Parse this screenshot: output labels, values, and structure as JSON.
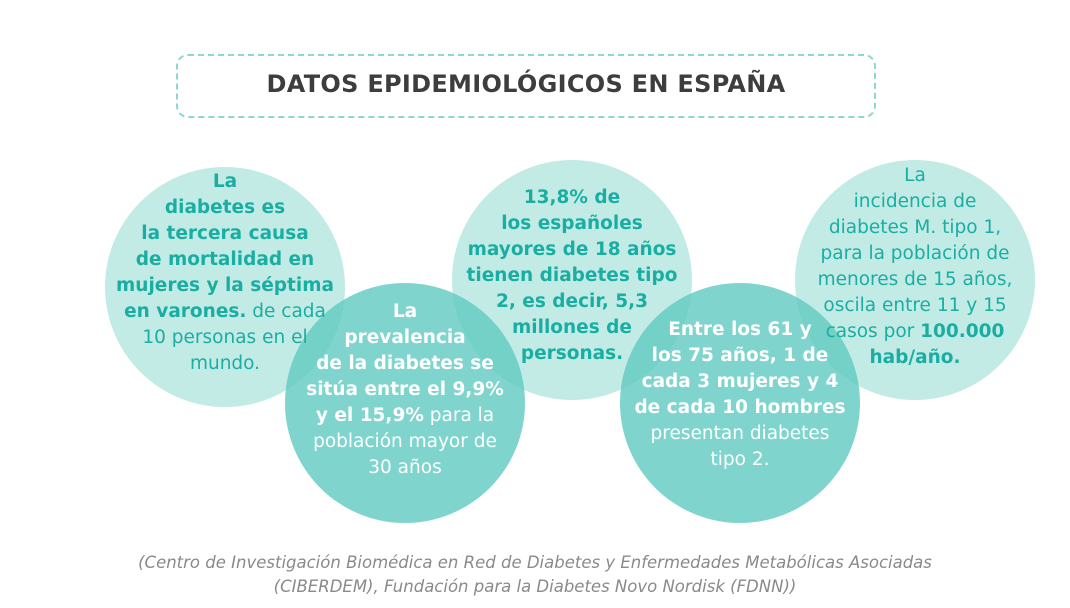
{
  "title": "DATOS EPIDEMIOLÓGICOS EN ESPAÑA",
  "circles": [
    {
      "lines": [
        [
          {
            "text": "La",
            "bold": true
          }
        ],
        [
          {
            "text": "diabetes es",
            "bold": true
          }
        ],
        [
          {
            "text": "la tercera causa",
            "bold": true
          }
        ],
        [
          {
            "text": "de mortalidad en",
            "bold": true
          }
        ],
        [
          {
            "text": "mujeres y la séptima",
            "bold": true
          }
        ],
        [
          {
            "text": "en varones.",
            "bold": true
          },
          {
            "text": " de cada",
            "bold": false
          }
        ],
        [
          {
            "text": "10 personas en el",
            "bold": false
          }
        ],
        [
          {
            "text": "mundo.",
            "bold": false
          }
        ]
      ]
    },
    {
      "lines": [
        [
          {
            "text": "La",
            "bold": true
          }
        ],
        [
          {
            "text": "prevalencia",
            "bold": true
          }
        ],
        [
          {
            "text": "de la diabetes se",
            "bold": true
          }
        ],
        [
          {
            "text": "sitúa entre el 9,9%",
            "bold": true
          }
        ],
        [
          {
            "text": "y el 15,9%",
            "bold": true
          },
          {
            "text": " para la",
            "bold": false
          }
        ],
        [
          {
            "text": "población mayor de",
            "bold": false
          }
        ],
        [
          {
            "text": "30 años",
            "bold": false
          }
        ]
      ]
    },
    {
      "lines": [
        [
          {
            "text": "13,8% de",
            "bold": true
          }
        ],
        [
          {
            "text": "los españoles",
            "bold": true
          }
        ],
        [
          {
            "text": "mayores de 18 años",
            "bold": true
          }
        ],
        [
          {
            "text": "tienen diabetes tipo",
            "bold": true
          }
        ],
        [
          {
            "text": "2, es decir, 5,3",
            "bold": true
          }
        ],
        [
          {
            "text": "millones de",
            "bold": true
          }
        ],
        [
          {
            "text": "personas.",
            "bold": true
          }
        ]
      ]
    },
    {
      "lines": [
        [
          {
            "text": "Entre los 61 y",
            "bold": true
          }
        ],
        [
          {
            "text": "los 75 años, 1 de",
            "bold": true
          }
        ],
        [
          {
            "text": "cada 3 mujeres y 4",
            "bold": true
          }
        ],
        [
          {
            "text": "de cada 10 hombres",
            "bold": true
          }
        ],
        [
          {
            "text": "presentan diabetes",
            "bold": false
          }
        ],
        [
          {
            "text": "tipo 2.",
            "bold": false
          }
        ]
      ]
    },
    {
      "lines": [
        [
          {
            "text": "La",
            "bold": false
          }
        ],
        [
          {
            "text": "incidencia de",
            "bold": false
          }
        ],
        [
          {
            "text": "diabetes M. tipo 1,",
            "bold": false
          }
        ],
        [
          {
            "text": "para la población de",
            "bold": false
          }
        ],
        [
          {
            "text": "menores de 15 años,",
            "bold": false
          }
        ],
        [
          {
            "text": "oscila entre 11 y 15",
            "bold": false
          }
        ],
        [
          {
            "text": "casos por ",
            "bold": false
          },
          {
            "text": "100.000",
            "bold": true
          }
        ],
        [
          {
            "text": "hab/año.",
            "bold": true
          }
        ]
      ]
    }
  ],
  "source": [
    "(Centro de Investigación Biomédica en Red de Diabetes y Enfermedades Metabólicas Asociadas",
    "(CIBERDEM), Fundación para la Diabetes Novo Nordisk (FDNN))"
  ]
}
